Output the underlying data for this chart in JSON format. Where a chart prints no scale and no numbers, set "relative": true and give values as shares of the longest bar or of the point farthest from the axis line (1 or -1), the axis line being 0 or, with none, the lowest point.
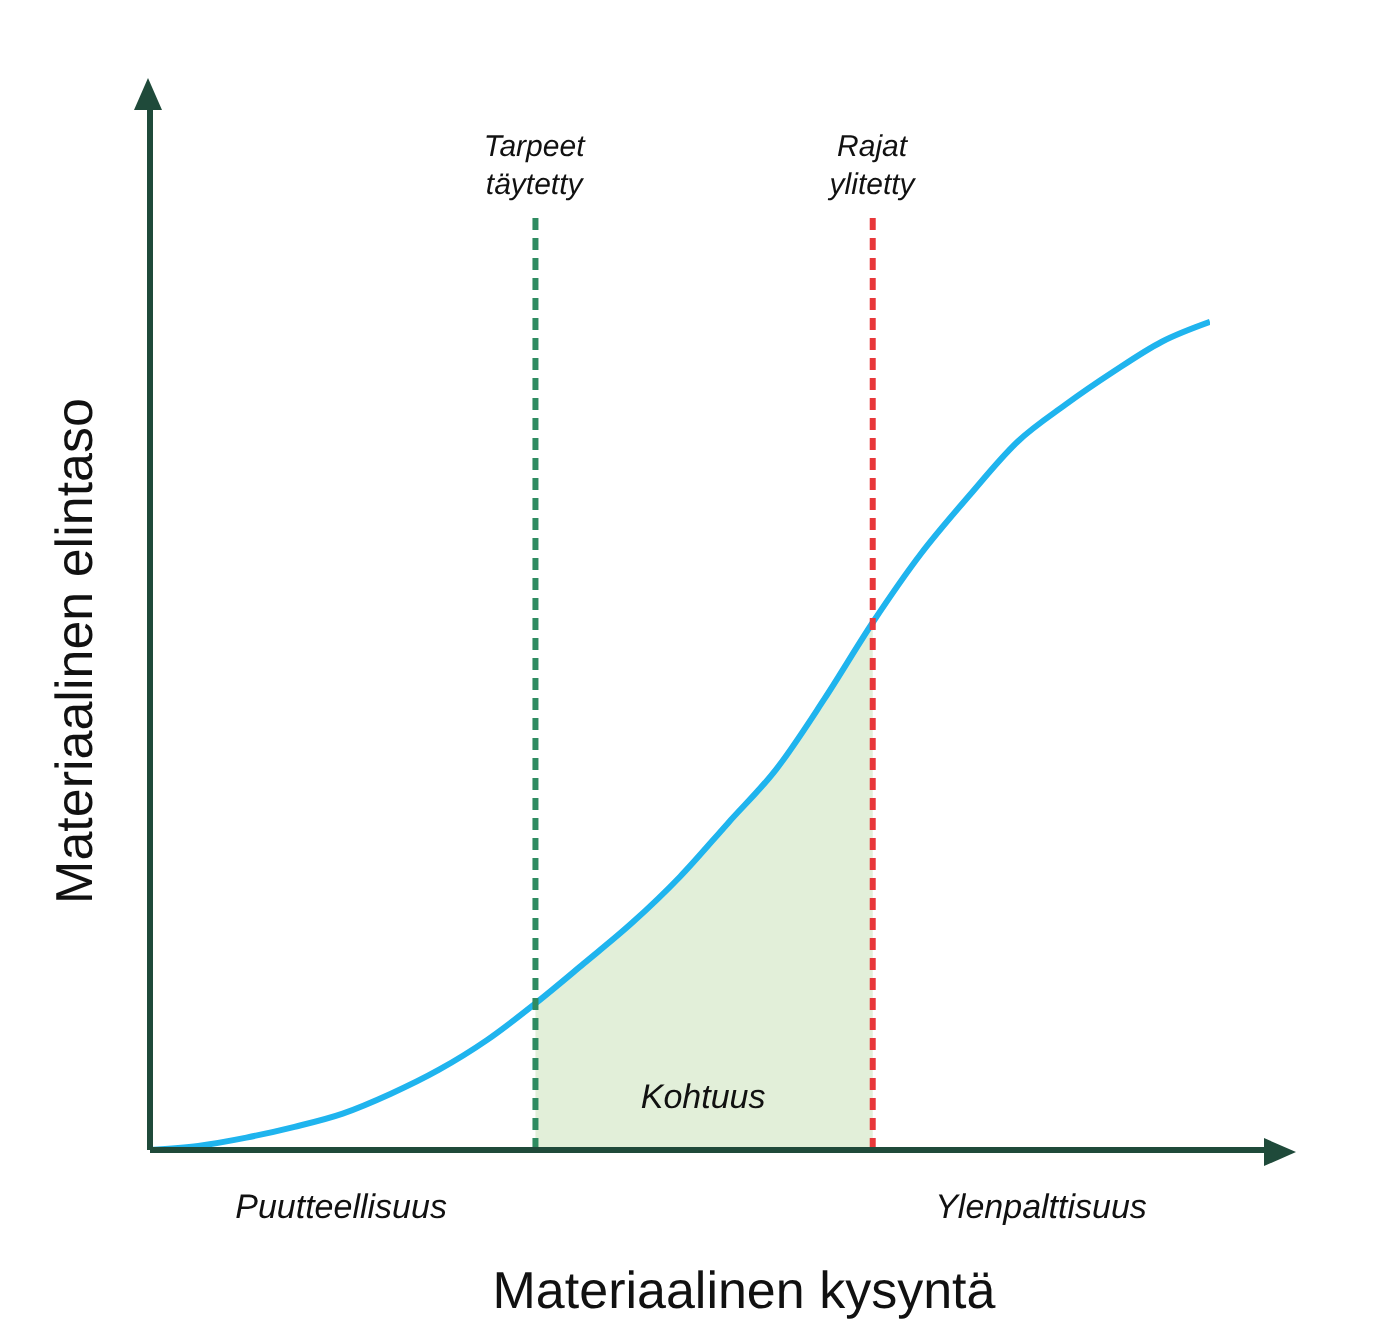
{
  "chart_data": {
    "type": "line",
    "relative": true,
    "xlabel": "Materiaalinen kysyntä",
    "ylabel": "Materiaalinen elintaso",
    "categories": [
      null,
      null,
      null,
      null,
      null,
      null,
      null,
      null,
      null,
      null,
      null,
      null,
      null,
      null,
      null,
      null,
      null,
      null,
      null,
      null,
      null,
      null,
      null
    ],
    "series": [
      {
        "type": "area",
        "name": "Kohtuus",
        "color": "#e2efd9",
        "values": [
          null,
          null,
          null,
          null,
          null,
          null,
          null,
          null,
          0.177,
          0.225,
          0.274,
          0.33,
          0.395,
          0.46,
          0.545,
          0.637,
          null,
          null,
          null,
          null,
          null,
          null,
          null
        ]
      },
      {
        "color": "#1fb4ee",
        "values": [
          0,
          0.005,
          0.015,
          0.028,
          0.044,
          0.068,
          0.097,
          0.133,
          0.177,
          0.225,
          0.274,
          0.33,
          0.395,
          0.46,
          0.545,
          0.637,
          0.72,
          0.79,
          0.855,
          0.9,
          0.94,
          0.976,
          1
        ]
      }
    ],
    "annotations": [
      "Tarpeet täytetty",
      "Rajat ylitetty",
      "Puutteellisuus",
      "Ylenpalttisuus"
    ],
    "marker": "none",
    "line_style": "solid"
  }
}
